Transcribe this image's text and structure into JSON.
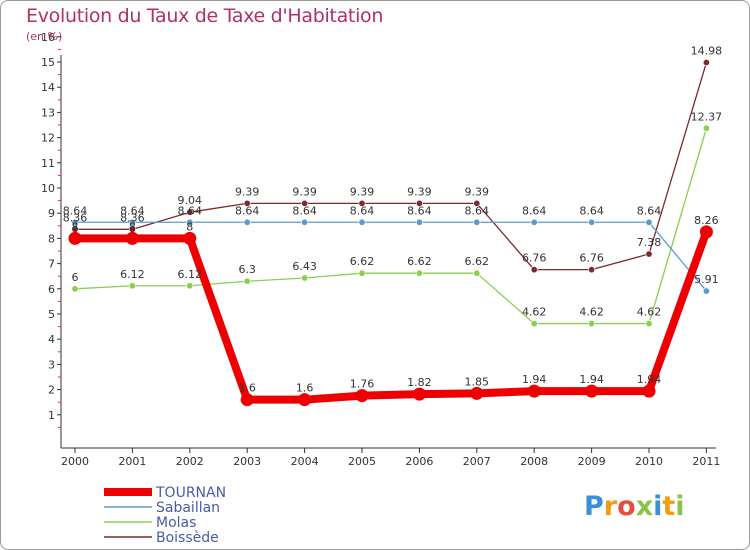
{
  "title": "Evolution du Taux de Taxe d'Habitation",
  "subtitle": "(en %)",
  "chart_data": {
    "type": "line",
    "x": [
      "2000",
      "2001",
      "2002",
      "2003",
      "2004",
      "2005",
      "2006",
      "2007",
      "2008",
      "2009",
      "2010",
      "2011"
    ],
    "ylim": [
      0,
      16
    ],
    "yticks": [
      "1",
      "2",
      "3",
      "4",
      "5",
      "6",
      "7",
      "8",
      "9",
      "10",
      "11",
      "12",
      "13",
      "14",
      "15",
      "16"
    ],
    "grid": false,
    "legend_position": "bottom-left",
    "series": [
      {
        "name": "TOURNAN",
        "color": "#ee0000",
        "values": [
          8,
          8,
          8,
          1.6,
          1.6,
          1.76,
          1.82,
          1.85,
          1.94,
          1.94,
          1.94,
          8.26
        ],
        "labels": [
          "8",
          "8",
          "8",
          "1.6",
          "1.6",
          "1.76",
          "1.82",
          "1.85",
          "1.94",
          "1.94",
          "1.94",
          "8.26"
        ]
      },
      {
        "name": "Sabaillan",
        "color": "#5b9bd0",
        "values": [
          8.64,
          8.64,
          8.64,
          8.64,
          8.64,
          8.64,
          8.64,
          8.64,
          8.64,
          8.64,
          8.64,
          5.91
        ],
        "labels": [
          "8.64",
          "8.64",
          "8.64",
          "8.64",
          "8.64",
          "8.64",
          "8.64",
          "8.64",
          "8.64",
          "8.64",
          "8.64",
          "5.91"
        ]
      },
      {
        "name": "Molas",
        "color": "#88d050",
        "values": [
          6,
          6.12,
          6.12,
          6.3,
          6.43,
          6.62,
          6.62,
          6.62,
          4.62,
          4.62,
          4.62,
          12.37
        ],
        "labels": [
          "6",
          "6.12",
          "6.12",
          "6.3",
          "6.43",
          "6.62",
          "6.62",
          "6.62",
          "4.62",
          "4.62",
          "4.62",
          "12.37"
        ]
      },
      {
        "name": "Boissède",
        "color": "#7b2a2e",
        "values": [
          8.36,
          8.36,
          9.04,
          9.39,
          9.39,
          9.39,
          9.39,
          9.39,
          6.76,
          6.76,
          7.38,
          14.98
        ],
        "labels": [
          "8.36",
          "8.36",
          "9.04",
          "9.39",
          "9.39",
          "9.39",
          "9.39",
          "9.39",
          "6.76",
          "6.76",
          "7.38",
          "14.98"
        ]
      }
    ]
  },
  "logo": {
    "text": "Proxiti",
    "letter_colors": [
      "#3a8fd6",
      "#f39c12",
      "#e74c3c",
      "#8bc34a",
      "#3a8fd6",
      "#f39c12",
      "#8bc34a"
    ]
  }
}
